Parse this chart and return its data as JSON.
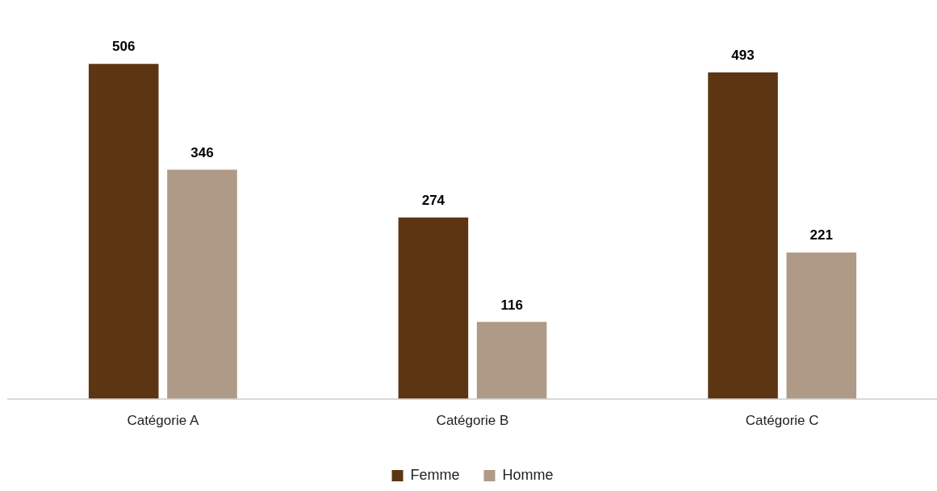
{
  "chart_data": {
    "type": "bar",
    "categories": [
      "Catégorie A",
      "Catégorie B",
      "Catégorie C"
    ],
    "series": [
      {
        "name": "Femme",
        "color": "#5c3513",
        "values": [
          506,
          274,
          493
        ]
      },
      {
        "name": "Homme",
        "color": "#ae9a87",
        "values": [
          346,
          116,
          221
        ]
      }
    ],
    "data_labels": true,
    "legend": "bottom",
    "grid": false,
    "tick_labels": "x"
  }
}
